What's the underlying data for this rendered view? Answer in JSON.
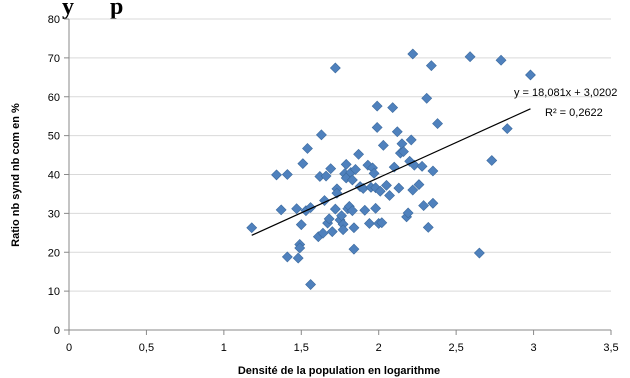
{
  "chart_data": {
    "type": "scatter",
    "title": "",
    "title_fragment": "y      p",
    "xlabel": "Densité de la population en logarithme",
    "ylabel": "Ratio nb synd nb com en %",
    "xlim": [
      0,
      3.5
    ],
    "ylim": [
      0,
      80
    ],
    "xticks": [
      0,
      0.5,
      1,
      1.5,
      2,
      2.5,
      3,
      3.5
    ],
    "xtick_labels": [
      "0",
      "0,5",
      "1",
      "1,5",
      "2",
      "2,5",
      "3",
      "3,5"
    ],
    "yticks": [
      0,
      10,
      20,
      30,
      40,
      50,
      60,
      70,
      80
    ],
    "ytick_labels": [
      "0",
      "10",
      "20",
      "30",
      "40",
      "50",
      "60",
      "70",
      "80"
    ],
    "grid": {
      "x": false,
      "y": true
    },
    "marker": {
      "shape": "diamond",
      "color": "#4f81bd"
    },
    "trendline": {
      "type": "linear",
      "slope": 18.081,
      "intercept": 3.0202,
      "x_range": [
        1.18,
        2.98
      ],
      "equation_label": "y = 18,081x + 3,0202",
      "r2_label": "R² = 0,2622",
      "color": "#000000"
    },
    "points": [
      [
        1.18,
        26.3
      ],
      [
        1.34,
        39.9
      ],
      [
        1.37,
        30.9
      ],
      [
        1.41,
        40.0
      ],
      [
        1.41,
        18.8
      ],
      [
        1.47,
        31.2
      ],
      [
        1.48,
        18.5
      ],
      [
        1.49,
        22.0
      ],
      [
        1.49,
        21.1
      ],
      [
        1.5,
        27.1
      ],
      [
        1.51,
        42.8
      ],
      [
        1.53,
        30.7
      ],
      [
        1.54,
        46.7
      ],
      [
        1.56,
        11.7
      ],
      [
        1.56,
        31.5
      ],
      [
        1.61,
        24.0
      ],
      [
        1.62,
        39.5
      ],
      [
        1.63,
        50.2
      ],
      [
        1.64,
        24.9
      ],
      [
        1.65,
        33.3
      ],
      [
        1.66,
        39.6
      ],
      [
        1.67,
        27.5
      ],
      [
        1.68,
        28.6
      ],
      [
        1.69,
        41.5
      ],
      [
        1.7,
        25.3
      ],
      [
        1.72,
        67.4
      ],
      [
        1.72,
        31.1
      ],
      [
        1.73,
        36.3
      ],
      [
        1.73,
        35.2
      ],
      [
        1.75,
        28.3
      ],
      [
        1.76,
        29.4
      ],
      [
        1.77,
        27.2
      ],
      [
        1.77,
        25.8
      ],
      [
        1.78,
        40.2
      ],
      [
        1.79,
        42.6
      ],
      [
        1.79,
        39.1
      ],
      [
        1.8,
        31.2
      ],
      [
        1.81,
        31.8
      ],
      [
        1.82,
        40.5
      ],
      [
        1.83,
        38.6
      ],
      [
        1.83,
        30.7
      ],
      [
        1.84,
        26.3
      ],
      [
        1.84,
        20.8
      ],
      [
        1.85,
        41.3
      ],
      [
        1.87,
        45.2
      ],
      [
        1.88,
        36.9
      ],
      [
        1.9,
        36.4
      ],
      [
        1.91,
        30.8
      ],
      [
        1.93,
        42.4
      ],
      [
        1.94,
        27.4
      ],
      [
        1.95,
        36.7
      ],
      [
        1.96,
        41.7
      ],
      [
        1.97,
        40.3
      ],
      [
        1.98,
        36.6
      ],
      [
        1.98,
        31.3
      ],
      [
        1.99,
        52.1
      ],
      [
        1.99,
        57.6
      ],
      [
        2.0,
        27.4
      ],
      [
        2.01,
        35.7
      ],
      [
        2.02,
        27.6
      ],
      [
        2.03,
        47.5
      ],
      [
        2.05,
        37.2
      ],
      [
        2.07,
        34.6
      ],
      [
        2.09,
        57.2
      ],
      [
        2.1,
        41.9
      ],
      [
        2.12,
        51.0
      ],
      [
        2.13,
        36.5
      ],
      [
        2.14,
        45.5
      ],
      [
        2.15,
        47.9
      ],
      [
        2.16,
        45.9
      ],
      [
        2.18,
        29.1
      ],
      [
        2.19,
        30.1
      ],
      [
        2.2,
        43.4
      ],
      [
        2.21,
        48.9
      ],
      [
        2.22,
        36.0
      ],
      [
        2.22,
        71.0
      ],
      [
        2.23,
        42.4
      ],
      [
        2.26,
        37.4
      ],
      [
        2.28,
        42.1
      ],
      [
        2.29,
        32.0
      ],
      [
        2.31,
        59.6
      ],
      [
        2.32,
        26.4
      ],
      [
        2.34,
        68.0
      ],
      [
        2.35,
        40.9
      ],
      [
        2.35,
        32.6
      ],
      [
        2.38,
        53.1
      ],
      [
        2.59,
        70.3
      ],
      [
        2.65,
        19.8
      ],
      [
        2.73,
        43.6
      ],
      [
        2.79,
        69.4
      ],
      [
        2.83,
        51.8
      ],
      [
        2.98,
        65.6
      ]
    ]
  }
}
